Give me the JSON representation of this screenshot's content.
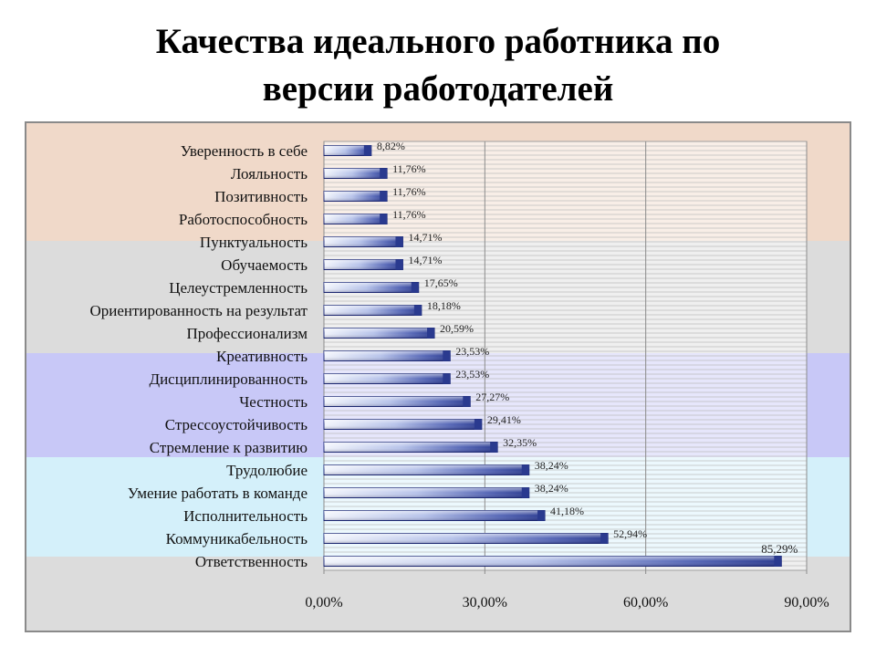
{
  "title": {
    "line1": "Качества идеального работника по",
    "line2": "версии работодателей"
  },
  "colors": {
    "band_peach": "#f0d9c9",
    "band_gray": "#dcdcdc",
    "band_lavender": "#c8c8f7",
    "band_cyan": "#d4f0fa",
    "bar_dark": "#2a3a8f",
    "bar_light": "#dfe6f6",
    "grid": "#a0a0a0"
  },
  "chart_data": {
    "type": "bar",
    "orientation": "horizontal",
    "title": "Качества идеального работника по версии работодателей",
    "xlabel": "",
    "ylabel": "",
    "xlim": [
      0,
      90
    ],
    "xticks": [
      "0,00%",
      "30,00%",
      "60,00%",
      "90,00%"
    ],
    "categories": [
      "Уверенность в себе",
      "Лояльность",
      "Позитивность",
      "Работоспособность",
      "Пунктуальность",
      "Обучаемость",
      "Целеустремленность",
      "Ориентированность на результат",
      "Профессионализм",
      "Креативность",
      "Дисциплинированность",
      "Честность",
      "Стрессоустойчивость",
      "Стремление к развитию",
      "Трудолюбие",
      "Умение работать в команде",
      "Исполнительность",
      "Коммуникабельность",
      "Ответственность"
    ],
    "values": [
      8.82,
      11.76,
      11.76,
      11.76,
      14.71,
      14.71,
      17.65,
      18.18,
      20.59,
      23.53,
      23.53,
      27.27,
      29.41,
      32.35,
      38.24,
      38.24,
      41.18,
      52.94,
      85.29
    ],
    "labels": [
      "8,82%",
      "11,76%",
      "11,76%",
      "11,76%",
      "14,71%",
      "14,71%",
      "17,65%",
      "18,18%",
      "20,59%",
      "23,53%",
      "23,53%",
      "27,27%",
      "29,41%",
      "32,35%",
      "38,24%",
      "38,24%",
      "41,18%",
      "52,94%",
      "85,29%"
    ],
    "bands": [
      {
        "from": 0,
        "to": 4,
        "color": "peach"
      },
      {
        "from": 4,
        "to": 9,
        "color": "gray"
      },
      {
        "from": 9,
        "to": 14,
        "color": "lavender"
      },
      {
        "from": 14,
        "to": 18,
        "color": "cyan"
      },
      {
        "from": 18,
        "to": 19,
        "color": "gray"
      }
    ],
    "grid": true
  }
}
